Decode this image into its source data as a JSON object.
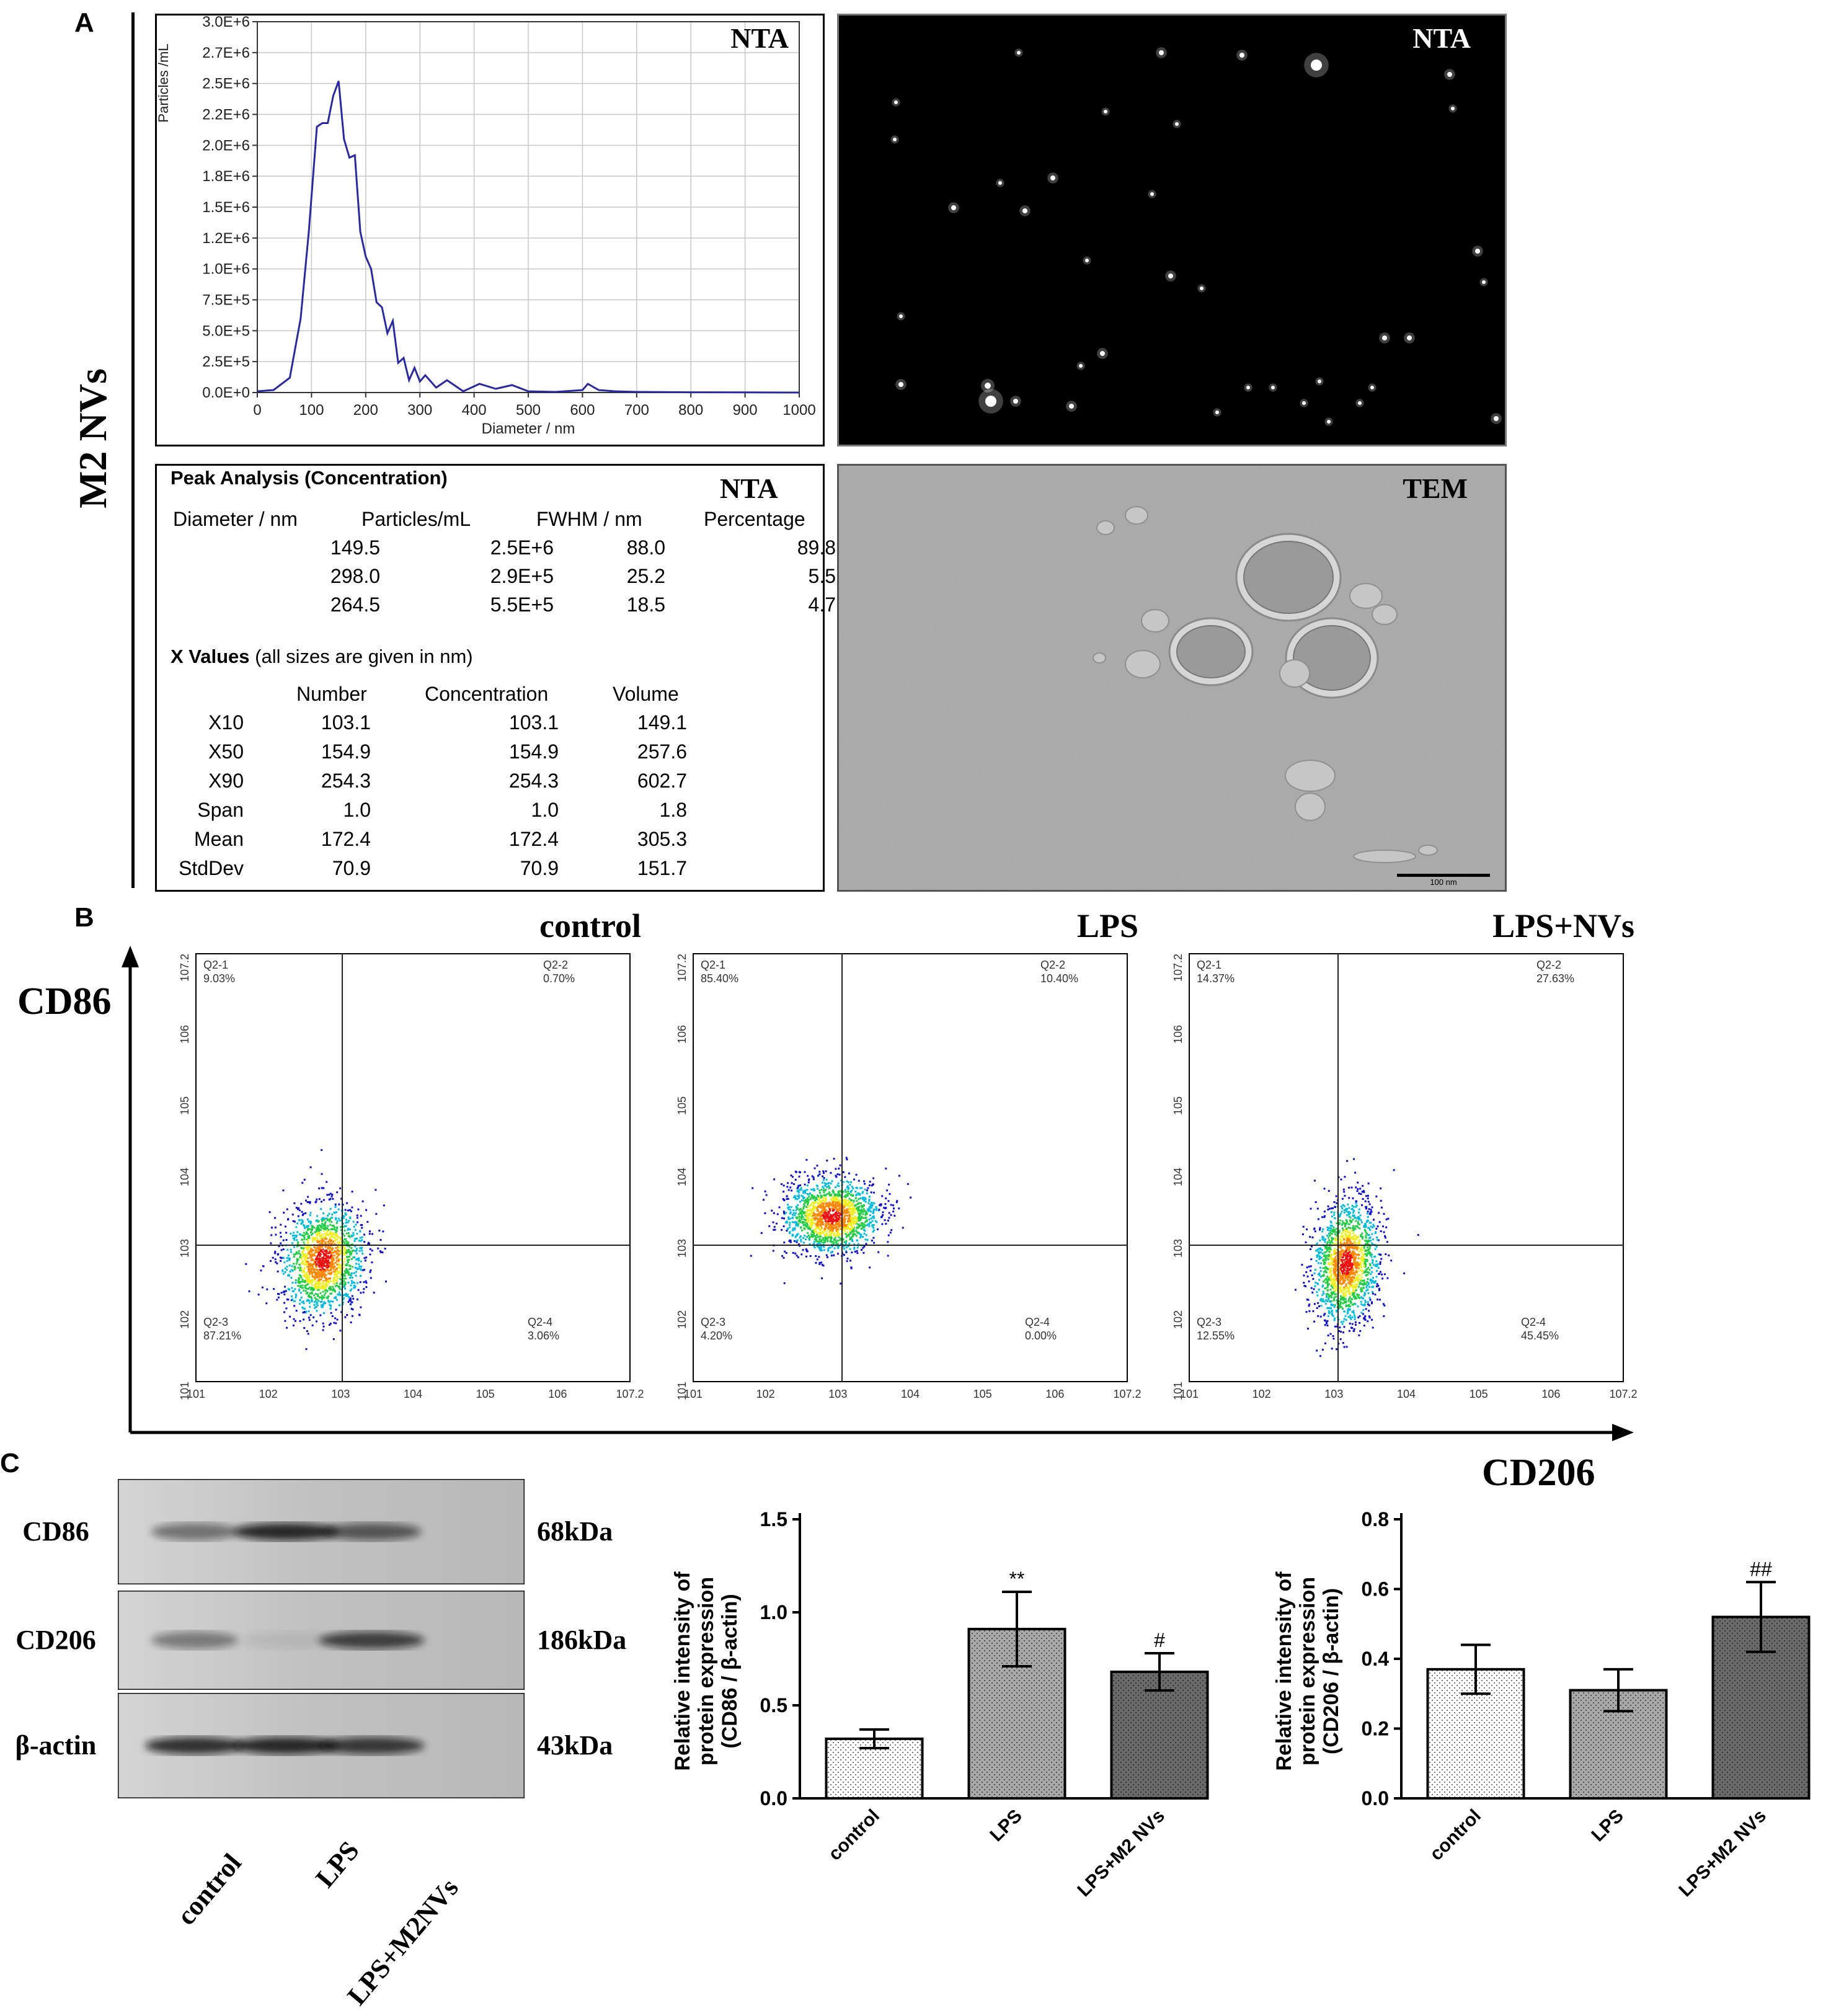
{
  "panels": {
    "a": "A",
    "b": "B",
    "c": "C"
  },
  "m2_label": "M2 NVs",
  "nta_hist": {
    "tag": "NTA",
    "xlabel": "Diameter / nm",
    "ylabel": "Particles /mL",
    "xticks": [
      "0",
      "100",
      "200",
      "300",
      "400",
      "500",
      "600",
      "700",
      "800",
      "900",
      "1000"
    ],
    "yticks": [
      "0.0E+0",
      "2.5E+5",
      "5.0E+5",
      "7.5E+5",
      "1.0E+6",
      "1.2E+6",
      "1.5E+6",
      "1.8E+6",
      "2.0E+6",
      "2.2E+6",
      "2.5E+6",
      "2.7E+6",
      "3.0E+6"
    ]
  },
  "nta_image": {
    "tag": "NTA"
  },
  "tem_image": {
    "tag": "TEM",
    "scale": "100 nm"
  },
  "peak": {
    "title": "Peak Analysis (Concentration)",
    "tag": "NTA",
    "headers": [
      "Diameter / nm",
      "Particles/mL",
      "FWHM / nm",
      "Percentage"
    ],
    "rows": [
      [
        "149.5",
        "2.5E+6",
        "88.0",
        "89.8"
      ],
      [
        "298.0",
        "2.9E+5",
        "25.2",
        "5.5"
      ],
      [
        "264.5",
        "5.5E+5",
        "18.5",
        "4.7"
      ]
    ],
    "xvalues_title": "X Values",
    "xvalues_note": "(all sizes are given in nm)",
    "xheaders": [
      "Number",
      "Concentration",
      "Volume"
    ],
    "xrows": [
      [
        "X10",
        "103.1",
        "103.1",
        "149.1"
      ],
      [
        "X50",
        "154.9",
        "154.9",
        "257.6"
      ],
      [
        "X90",
        "254.3",
        "254.3",
        "602.7"
      ],
      [
        "Span",
        "1.0",
        "1.0",
        "1.8"
      ],
      [
        "Mean",
        "172.4",
        "172.4",
        "305.3"
      ],
      [
        "StdDev",
        "70.9",
        "70.9",
        "151.7"
      ]
    ]
  },
  "flow": {
    "y_axis": "CD86",
    "x_axis": "CD206",
    "panels": [
      {
        "title": "control",
        "q1": "Q2-1",
        "q1v": "9.03%",
        "q2": "Q2-2",
        "q2v": "0.70%",
        "q3": "Q2-3",
        "q3v": "87.21%",
        "q4": "Q2-4",
        "q4v": "3.06%"
      },
      {
        "title": "LPS",
        "q1": "Q2-1",
        "q1v": "85.40%",
        "q2": "Q2-2",
        "q2v": "10.40%",
        "q3": "Q2-3",
        "q3v": "4.20%",
        "q4": "Q2-4",
        "q4v": "0.00%"
      },
      {
        "title": "LPS+NVs",
        "q1": "Q2-1",
        "q1v": "14.37%",
        "q2": "Q2-2",
        "q2v": "27.63%",
        "q3": "Q2-3",
        "q3v": "12.55%",
        "q4": "Q2-4",
        "q4v": "45.45%"
      }
    ]
  },
  "blot": {
    "rows": [
      {
        "protein": "CD86",
        "kda": "68kDa"
      },
      {
        "protein": "CD206",
        "kda": "186kDa"
      },
      {
        "protein": "β-actin",
        "kda": "43kDa"
      }
    ],
    "lanes": [
      "control",
      "LPS",
      "LPS+M2NVs"
    ]
  },
  "chart_data": [
    {
      "type": "line",
      "xlabel": "Diameter / nm",
      "ylabel": "Particles /mL",
      "xlim": [
        0,
        1000
      ],
      "ylim": [
        0,
        3000000
      ],
      "x": [
        0,
        30,
        60,
        80,
        95,
        110,
        120,
        130,
        140,
        150,
        160,
        170,
        180,
        190,
        200,
        210,
        220,
        230,
        240,
        250,
        260,
        270,
        280,
        290,
        300,
        310,
        330,
        350,
        380,
        410,
        440,
        470,
        500,
        550,
        600,
        610,
        630,
        660,
        700,
        800,
        900,
        1000
      ],
      "y": [
        10000,
        20000,
        120000,
        600000,
        1300000,
        2150000,
        2180000,
        2180000,
        2400000,
        2520000,
        2050000,
        1900000,
        1920000,
        1300000,
        1100000,
        1000000,
        730000,
        690000,
        480000,
        580000,
        240000,
        280000,
        100000,
        200000,
        90000,
        140000,
        40000,
        100000,
        10000,
        70000,
        30000,
        60000,
        10000,
        5000,
        20000,
        70000,
        20000,
        10000,
        5000,
        2000,
        1000,
        0
      ]
    },
    {
      "type": "bar",
      "categories": [
        "control",
        "LPS",
        "LPS+M2 NVs"
      ],
      "values": [
        0.32,
        0.91,
        0.68
      ],
      "errors": [
        0.05,
        0.2,
        0.1
      ],
      "annotations": [
        "",
        "**",
        "#"
      ],
      "ylabel": "Relative intensity of protein expression (CD86 / β-actin)",
      "ylim": [
        0,
        1.5
      ],
      "yticks": [
        "0.0",
        "0.5",
        "1.0",
        "1.5"
      ]
    },
    {
      "type": "bar",
      "categories": [
        "control",
        "LPS",
        "LPS+M2 NVs"
      ],
      "values": [
        0.37,
        0.31,
        0.52
      ],
      "errors": [
        0.07,
        0.06,
        0.1
      ],
      "annotations": [
        "",
        "",
        "##"
      ],
      "ylabel": "Relative intensity of protein expression (CD206 / β-actin)",
      "ylim": [
        0,
        0.8
      ],
      "yticks": [
        "0.0",
        "0.2",
        "0.4",
        "0.6",
        "0.8"
      ]
    }
  ]
}
